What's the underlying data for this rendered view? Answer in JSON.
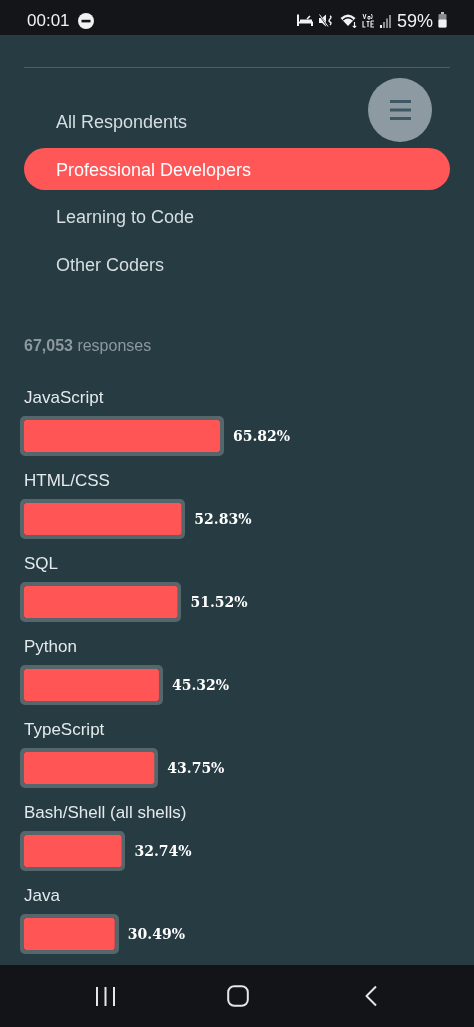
{
  "chart_data": {
    "type": "bar",
    "orientation": "horizontal",
    "subtitle": "67,053 responses",
    "annotations": [
      "00:01",
      "59%",
      "All Respondents",
      "Professional Developers",
      "Learning to Code",
      "Other Coders"
    ],
    "categories": [
      "JavaScript",
      "HTML/CSS",
      "SQL",
      "Python",
      "TypeScript",
      "Bash/Shell (all shells)",
      "Java"
    ],
    "values": [
      65.82,
      52.83,
      51.52,
      45.32,
      43.75,
      32.74,
      30.49
    ],
    "color": "#ff5555",
    "value_labels": [
      "65.82%",
      "52.83%",
      "51.52%",
      "45.32%",
      "43.75%",
      "32.74%",
      "30.49%"
    ],
    "tick_labels": "y"
  }
}
